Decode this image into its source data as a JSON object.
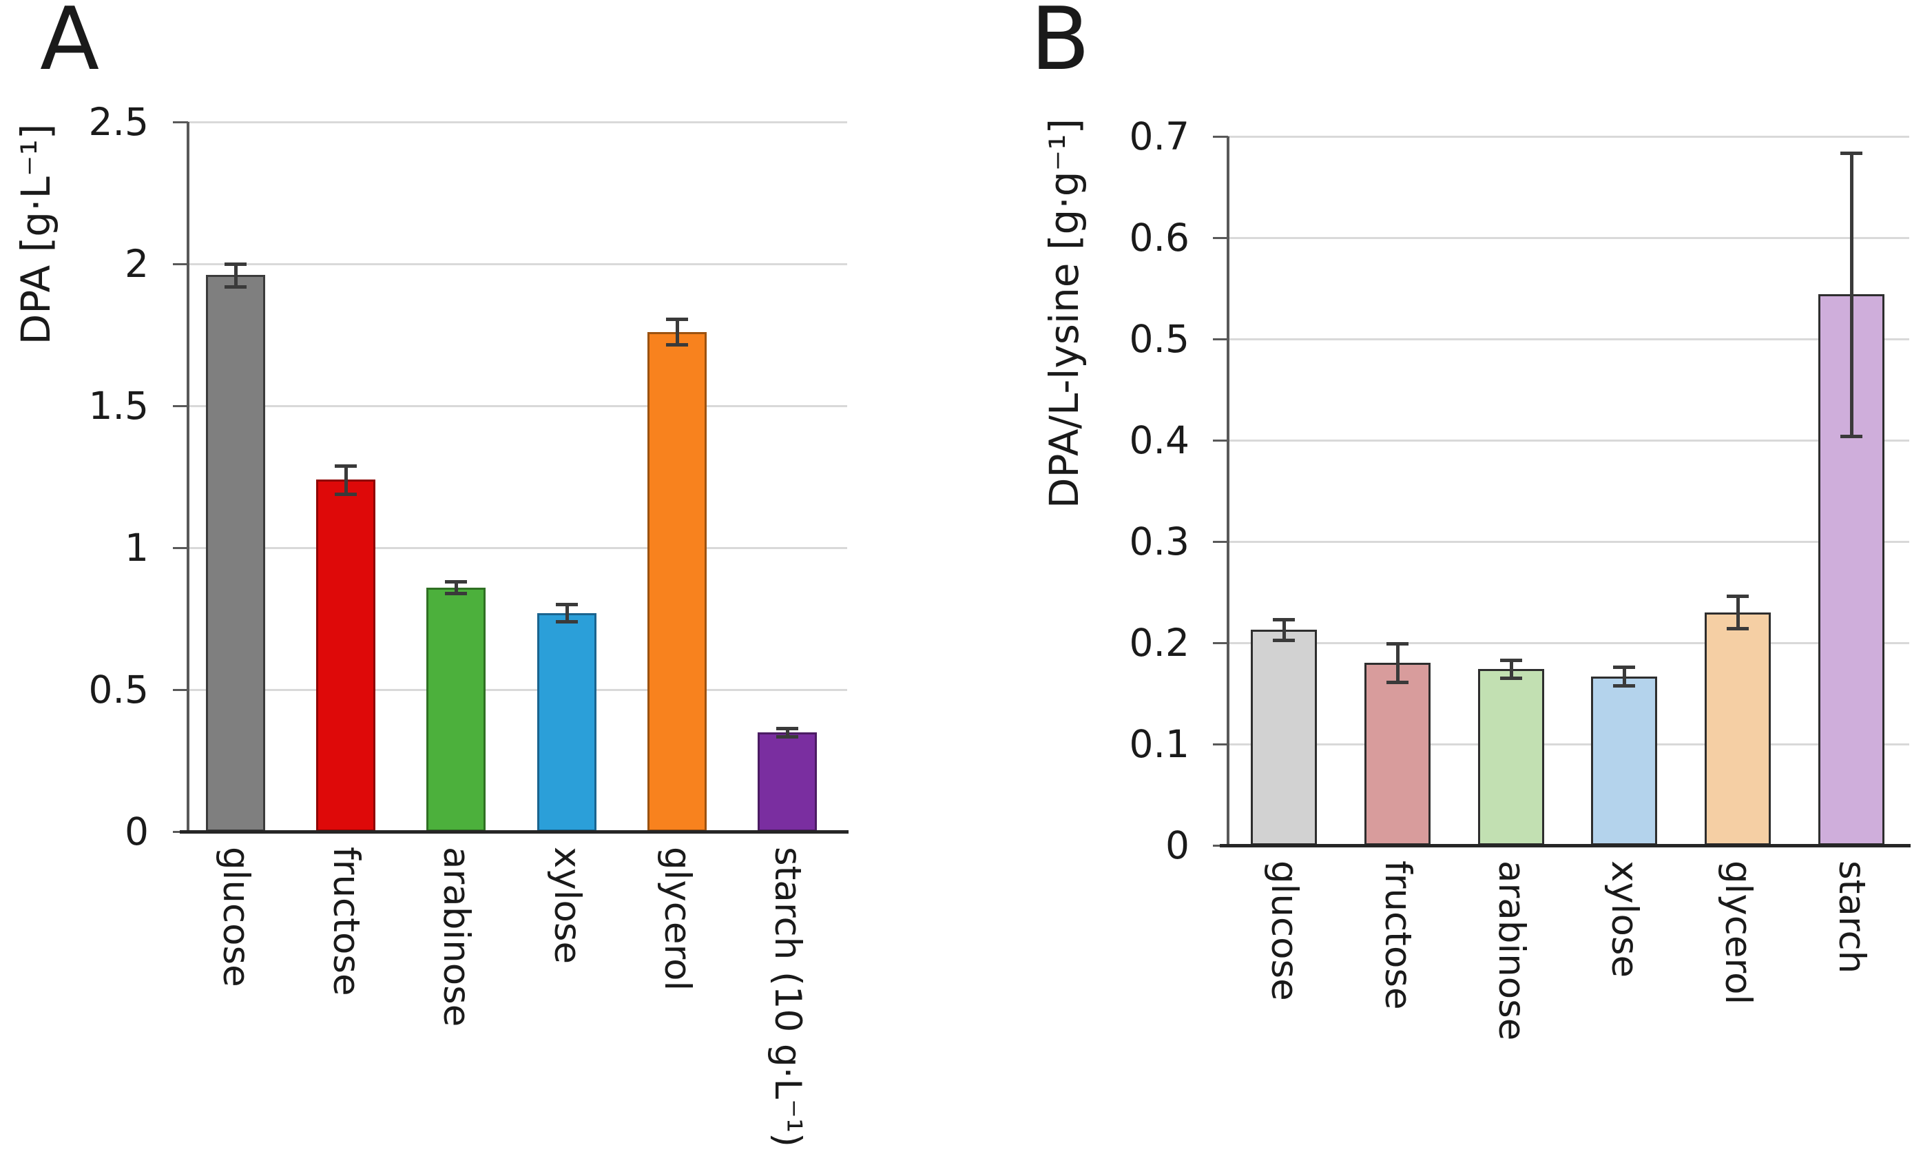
{
  "chart_data": [
    {
      "type": "bar",
      "panel_label": "A",
      "title": "",
      "xlabel": "",
      "ylabel": "DPA [g·L⁻¹]",
      "ylim": [
        0,
        2.5
      ],
      "y_tick_labels": [
        "2.5",
        "2",
        "1.5",
        "1",
        "0.5",
        "0"
      ],
      "grid": true,
      "legend": "none",
      "categories": [
        "glucose",
        "fructose",
        "arabinose",
        "xylose",
        "glycerol",
        "starch (10 g·L⁻¹)"
      ],
      "values": [
        1.96,
        1.24,
        0.86,
        0.77,
        1.76,
        0.35
      ],
      "errors": [
        0.04,
        0.05,
        0.02,
        0.03,
        0.045,
        0.015
      ],
      "bar_fill_style": "solid",
      "bar_colors": [
        "#7f7f7f",
        "#de0909",
        "#4cb03c",
        "#2b9fd9",
        "#f8821e",
        "#7a2ea0"
      ],
      "bar_border_colors": [
        "#3b3b3b",
        "#8f0503",
        "#2f7023",
        "#1a648f",
        "#9c5210",
        "#4b1c63"
      ]
    },
    {
      "type": "bar",
      "panel_label": "B",
      "title": "",
      "xlabel": "",
      "ylabel": "DPA/L-lysine [g·g⁻¹]",
      "ylim": [
        0,
        0.7
      ],
      "y_tick_labels": [
        "0.7",
        "0.6",
        "0.5",
        "0.4",
        "0.3",
        "0.2",
        "0.1",
        "0"
      ],
      "grid": true,
      "legend": "none",
      "categories": [
        "glucose",
        "fructose",
        "arabinose",
        "xylose",
        "glycerol",
        "starch"
      ],
      "values": [
        0.213,
        0.18,
        0.174,
        0.167,
        0.23,
        0.544
      ],
      "errors": [
        0.01,
        0.019,
        0.009,
        0.009,
        0.016,
        0.14
      ],
      "bar_fill_style": "dotted-lattice-pattern",
      "bar_colors": [
        "#d2d2d2",
        "#d89c9c",
        "#c2e0b2",
        "#b4d3ec",
        "#f5cfa4",
        "#cfaedb"
      ],
      "bar_dot_colors": [
        "#a9a9a9",
        "#c26a6a",
        "#93c578",
        "#7fb0dc",
        "#eca86b",
        "#ad7fc6"
      ],
      "bar_border_colors": [
        "#2e2e2e",
        "#2e2e2e",
        "#2e2e2e",
        "#2e2e2e",
        "#2e2e2e",
        "#2e2e2e"
      ]
    }
  ]
}
